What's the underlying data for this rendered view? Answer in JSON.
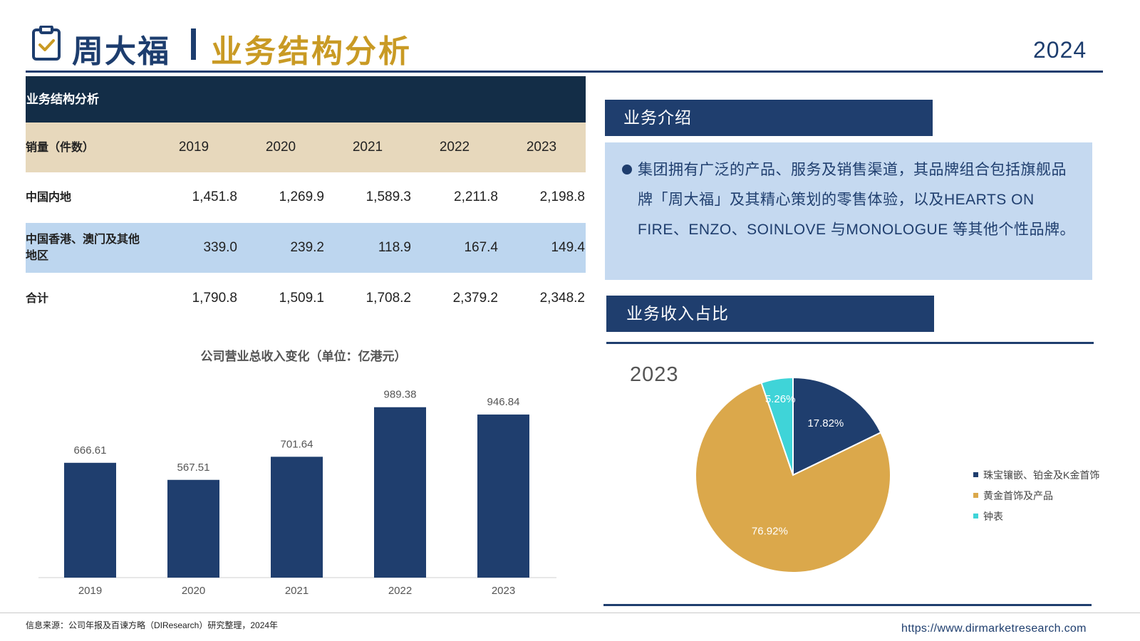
{
  "header": {
    "brand": "周大福",
    "topic": "业务结构分析",
    "year": "2024"
  },
  "table": {
    "title": "业务结构分析",
    "header_label": "销量（件数）",
    "years": [
      "2019",
      "2020",
      "2021",
      "2022",
      "2023"
    ],
    "rows": [
      {
        "label": "中国内地",
        "values": [
          "1,451.8",
          "1,269.9",
          "1,589.3",
          "2,211.8",
          "2,198.8"
        ]
      },
      {
        "label": "中国香港、澳门及其他地区",
        "values": [
          "339.0",
          "239.2",
          "118.9",
          "167.4",
          "149.4"
        ]
      },
      {
        "label": "合计",
        "values": [
          "1,790.8",
          "1,509.1",
          "1,708.2",
          "2,379.2",
          "2,348.2"
        ]
      }
    ]
  },
  "intro": {
    "title": "业务介绍",
    "text": "集团拥有广泛的产品、服务及销售渠道，其品牌组合包括旗舰品牌「周大福」及其精心策划的零售体验，以及HEARTS ON FIRE、ENZO、SOINLOVE 与MONOLOGUE 等其他个性品牌。"
  },
  "revenue": {
    "title": "业务收入占比",
    "year": "2023"
  },
  "chart_data": [
    {
      "type": "bar",
      "title": "公司营业总收入变化（单位：亿港元）",
      "categories": [
        "2019",
        "2020",
        "2021",
        "2022",
        "2023"
      ],
      "values": [
        666.61,
        567.51,
        701.64,
        989.38,
        946.84
      ],
      "labels": [
        "666.61",
        "567.51",
        "701.64",
        "989.38",
        "946.84"
      ],
      "ylim": [
        0,
        1100
      ],
      "color": "#1f3e6e",
      "grid": false
    },
    {
      "type": "pie",
      "title": "2023",
      "slices": [
        {
          "name": "珠宝镶嵌、铂金及K金首饰",
          "value": 17.82,
          "label": "17.82%",
          "color": "#1f3e6e"
        },
        {
          "name": "黄金首饰及产品",
          "value": 76.92,
          "label": "76.92%",
          "color": "#dba84b"
        },
        {
          "name": "钟表",
          "value": 5.26,
          "label": "5.26%",
          "color": "#3fd4d8"
        }
      ],
      "legend_position": "right"
    }
  ],
  "footer": {
    "source": "信息来源：公司年报及百谏方略（DIResearch）研究整理，2024年",
    "url": "https://www.dirmarketresearch.com"
  }
}
